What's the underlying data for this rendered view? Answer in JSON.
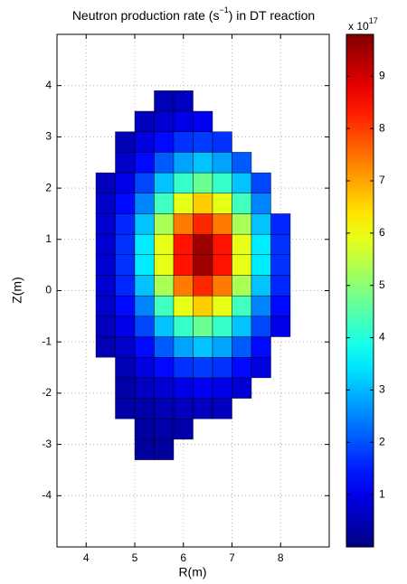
{
  "chart_data": {
    "type": "heatmap",
    "title_parts": [
      "Neutron production rate (s",
      "−1",
      ") in DT reaction"
    ],
    "xlabel": "R(m)",
    "ylabel": "Z(m)",
    "colorbar_label_parts": [
      "x 10",
      "17"
    ],
    "colormap": "jet",
    "grid": true,
    "xlim": [
      3.4,
      9
    ],
    "ylim": [
      -5,
      5
    ],
    "xticks": [
      4,
      5,
      6,
      7,
      8
    ],
    "yticks": [
      -4,
      -3,
      -2,
      -1,
      0,
      1,
      2,
      3,
      4
    ],
    "clim": [
      0,
      9.8
    ],
    "cticks": [
      1,
      2,
      3,
      4,
      5,
      6,
      7,
      8,
      9
    ],
    "x": [
      4.4,
      4.8,
      5.2,
      5.6,
      6.0,
      6.4,
      6.8,
      7.2,
      7.6,
      8.0
    ],
    "y": [
      -3.1,
      -2.7,
      -2.3,
      -1.9,
      -1.5,
      -1.1,
      -0.7,
      -0.3,
      0.1,
      0.5,
      0.9,
      1.3,
      1.7,
      2.1,
      2.5,
      2.9,
      3.3,
      3.7
    ],
    "z": [
      [
        null,
        null,
        0.3,
        0.3,
        null,
        null,
        null,
        null,
        null,
        null
      ],
      [
        null,
        null,
        0.3,
        0.4,
        0.4,
        null,
        null,
        null,
        null,
        null
      ],
      [
        null,
        0.4,
        0.4,
        0.5,
        0.6,
        0.6,
        0.6,
        null,
        null,
        null
      ],
      [
        null,
        0.4,
        0.6,
        0.8,
        1.0,
        1.1,
        1.0,
        0.8,
        null,
        null
      ],
      [
        null,
        0.5,
        0.9,
        1.3,
        1.7,
        1.8,
        1.7,
        1.3,
        0.9,
        null
      ],
      [
        0.5,
        0.7,
        1.3,
        2.1,
        2.8,
        3.1,
        2.8,
        2.1,
        1.3,
        null
      ],
      [
        0.6,
        1.0,
        1.9,
        3.1,
        4.2,
        4.7,
        4.2,
        3.1,
        1.9,
        1.0
      ],
      [
        0.7,
        1.3,
        2.5,
        4.3,
        5.9,
        6.6,
        5.9,
        4.3,
        2.5,
        1.3
      ],
      [
        0.8,
        1.6,
        3.1,
        5.3,
        7.4,
        8.2,
        7.4,
        5.3,
        3.1,
        1.6
      ],
      [
        0.8,
        1.7,
        3.5,
        5.9,
        8.4,
        9.5,
        8.4,
        5.9,
        3.5,
        1.7
      ],
      [
        0.8,
        1.7,
        3.5,
        5.9,
        8.4,
        9.5,
        8.4,
        5.9,
        3.5,
        1.7
      ],
      [
        0.8,
        1.6,
        3.1,
        5.3,
        7.4,
        8.2,
        7.4,
        5.3,
        3.1,
        1.6
      ],
      [
        0.7,
        1.3,
        2.5,
        4.3,
        5.9,
        6.6,
        5.9,
        4.3,
        2.5,
        null
      ],
      [
        0.6,
        1.0,
        1.9,
        3.1,
        4.2,
        4.7,
        4.2,
        3.1,
        1.9,
        null
      ],
      [
        null,
        0.7,
        1.3,
        2.1,
        2.8,
        3.1,
        2.8,
        2.1,
        null,
        null
      ],
      [
        null,
        0.5,
        0.9,
        1.3,
        1.7,
        1.8,
        1.7,
        null,
        null,
        null
      ],
      [
        null,
        null,
        0.6,
        0.8,
        1.0,
        1.1,
        null,
        null,
        null,
        null
      ],
      [
        null,
        null,
        null,
        0.5,
        0.6,
        null,
        null,
        null,
        null,
        null
      ]
    ]
  }
}
